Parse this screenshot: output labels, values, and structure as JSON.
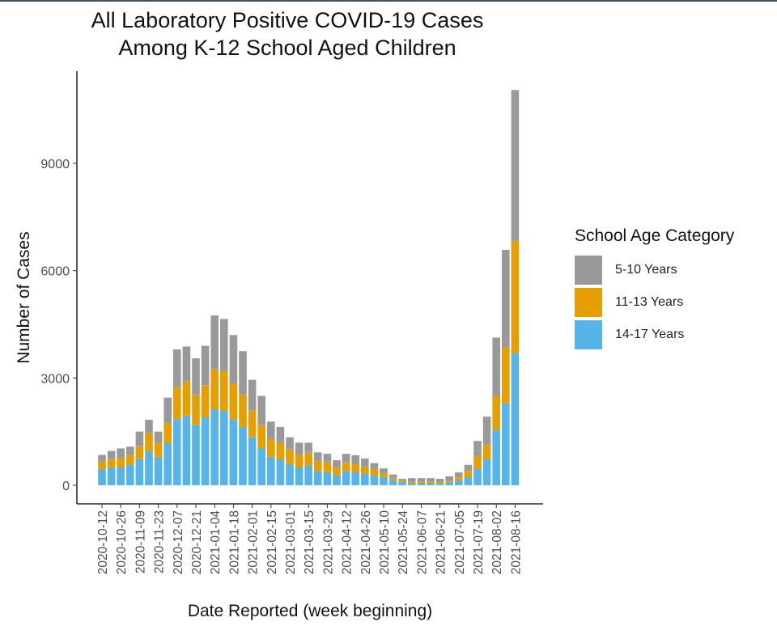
{
  "chart_data": {
    "type": "bar",
    "stacked": true,
    "title": "All Laboratory Positive COVID-19 Cases\nAmong K-12 School Aged Children",
    "xlabel": "Date Reported (week beginning)",
    "ylabel": "Number of Cases",
    "yticks": [
      0,
      3000,
      6000,
      9000
    ],
    "ylim": [
      0,
      11600
    ],
    "grid": false,
    "legend_title": "School Age Category",
    "legend_position": "right",
    "categories": [
      "2020-10-12",
      "2020-10-19",
      "2020-10-26",
      "2020-11-02",
      "2020-11-09",
      "2020-11-16",
      "2020-11-23",
      "2020-11-30",
      "2020-12-07",
      "2020-12-14",
      "2020-12-21",
      "2020-12-28",
      "2021-01-04",
      "2021-01-11",
      "2021-01-18",
      "2021-01-25",
      "2021-02-01",
      "2021-02-08",
      "2021-02-15",
      "2021-02-22",
      "2021-03-01",
      "2021-03-08",
      "2021-03-15",
      "2021-03-22",
      "2021-03-29",
      "2021-04-05",
      "2021-04-12",
      "2021-04-19",
      "2021-04-26",
      "2021-05-03",
      "2021-05-10",
      "2021-05-17",
      "2021-05-24",
      "2021-05-31",
      "2021-06-07",
      "2021-06-14",
      "2021-06-21",
      "2021-06-28",
      "2021-07-05",
      "2021-07-12",
      "2021-07-19",
      "2021-07-26",
      "2021-08-02",
      "2021-08-09",
      "2021-08-16"
    ],
    "xtick_labels": [
      "2020-10-12",
      "2020-10-26",
      "2020-11-09",
      "2020-11-23",
      "2020-12-07",
      "2020-12-21",
      "2021-01-04",
      "2021-01-18",
      "2021-02-01",
      "2021-02-15",
      "2021-03-01",
      "2021-03-15",
      "2021-03-29",
      "2021-04-12",
      "2021-04-26",
      "2021-05-10",
      "2021-05-24",
      "2021-06-07",
      "2021-06-21",
      "2021-07-05",
      "2021-07-19",
      "2021-08-02",
      "2021-08-16"
    ],
    "series": [
      {
        "name": "14-17 Years",
        "color": "#56B4E9",
        "values": [
          450,
          500,
          520,
          580,
          750,
          950,
          800,
          1200,
          1850,
          1950,
          1700,
          1900,
          2150,
          2100,
          1850,
          1650,
          1350,
          1050,
          800,
          750,
          600,
          520,
          550,
          400,
          380,
          300,
          400,
          380,
          320,
          280,
          230,
          150,
          100,
          70,
          70,
          70,
          60,
          80,
          150,
          250,
          480,
          750,
          1550,
          2300,
          3700
        ]
      },
      {
        "name": "11-13 Years",
        "color": "#E69F00",
        "values": [
          220,
          230,
          250,
          270,
          350,
          500,
          400,
          550,
          900,
          950,
          850,
          900,
          1100,
          1100,
          1000,
          900,
          750,
          650,
          500,
          450,
          400,
          350,
          380,
          300,
          280,
          220,
          250,
          230,
          210,
          180,
          120,
          60,
          40,
          30,
          30,
          30,
          30,
          40,
          90,
          180,
          340,
          400,
          950,
          1550,
          3150
        ]
      },
      {
        "name": "5-10 Years",
        "color": "#999999",
        "values": [
          180,
          230,
          260,
          230,
          400,
          380,
          300,
          700,
          1050,
          980,
          1000,
          1100,
          1500,
          1450,
          1350,
          1200,
          850,
          800,
          480,
          430,
          340,
          320,
          260,
          220,
          220,
          180,
          230,
          230,
          220,
          160,
          120,
          90,
          40,
          100,
          100,
          100,
          90,
          130,
          120,
          140,
          420,
          770,
          1630,
          2730,
          4200
        ]
      }
    ]
  }
}
